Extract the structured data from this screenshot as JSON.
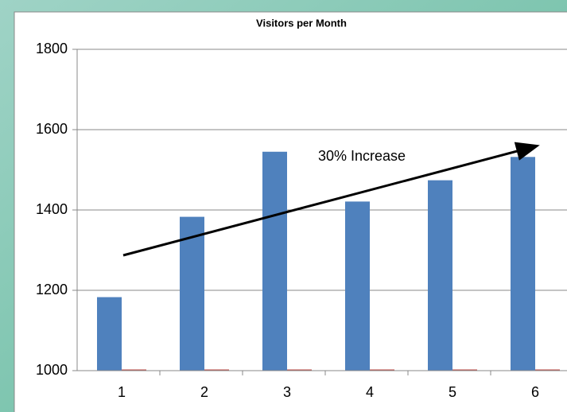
{
  "chart_data": {
    "type": "bar",
    "title": "Visitors per Month",
    "categories": [
      "1",
      "2",
      "3",
      "4",
      "5",
      "6"
    ],
    "series": [
      {
        "color": "#4f81bd",
        "values": [
          1183,
          1383,
          1545,
          1421,
          1474,
          1532
        ]
      },
      {
        "color": "#c0504d",
        "values": [
          1000,
          1000,
          1000,
          1000,
          1000,
          1000
        ]
      }
    ],
    "ylim": [
      1000,
      1800
    ],
    "yticks": [
      1000,
      1200,
      1400,
      1600,
      1800
    ],
    "grid": true,
    "annotation": "30% Increase"
  }
}
